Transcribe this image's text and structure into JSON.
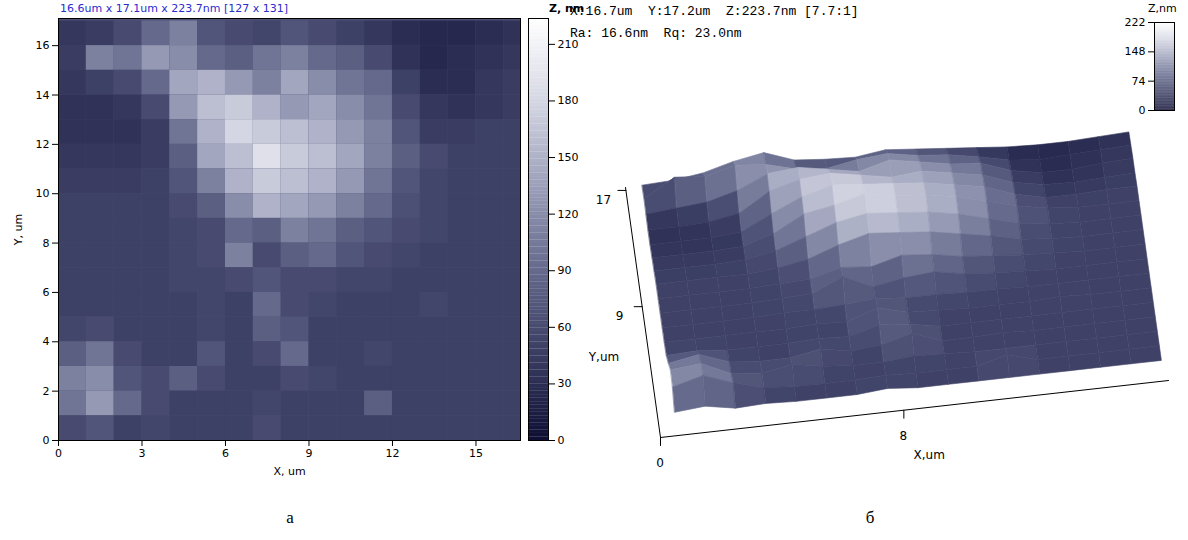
{
  "chart_data": [
    {
      "type": "heatmap",
      "title": "16.6um x 17.1um x 223.7nm [127 x 131]",
      "x_label": "X, um",
      "y_label": "Y, um",
      "xlim": [
        0,
        16.6
      ],
      "ylim": [
        0,
        17.1
      ],
      "xticks": [
        0,
        3,
        6,
        9,
        12,
        15
      ],
      "yticks": [
        0,
        2,
        4,
        6,
        8,
        10,
        12,
        14,
        16
      ],
      "x": [
        0.5,
        1.5,
        2.5,
        3.5,
        4.5,
        5.5,
        6.5,
        7.5,
        8.5,
        9.5,
        10.5,
        11.5,
        12.5,
        13.5,
        14.5,
        15.5,
        16.5
      ],
      "y": [
        16.5,
        15.5,
        14.5,
        13.5,
        12.5,
        11.5,
        10.5,
        9.5,
        8.5,
        7.5,
        6.5,
        5.5,
        4.5,
        3.5,
        2.5,
        1.5,
        0.5
      ],
      "z": [
        [
          40,
          45,
          60,
          90,
          110,
          70,
          60,
          55,
          70,
          60,
          50,
          40,
          30,
          25,
          25,
          30,
          35
        ],
        [
          45,
          110,
          100,
          130,
          120,
          90,
          80,
          100,
          110,
          90,
          80,
          60,
          35,
          25,
          30,
          35,
          40
        ],
        [
          40,
          50,
          60,
          90,
          140,
          150,
          130,
          110,
          140,
          120,
          100,
          90,
          50,
          30,
          30,
          40,
          45
        ],
        [
          35,
          35,
          40,
          60,
          130,
          160,
          170,
          150,
          130,
          140,
          120,
          100,
          60,
          40,
          35,
          40,
          45
        ],
        [
          35,
          35,
          35,
          45,
          100,
          150,
          180,
          170,
          160,
          150,
          130,
          110,
          70,
          45,
          45,
          50,
          50
        ],
        [
          40,
          40,
          40,
          45,
          80,
          140,
          160,
          190,
          170,
          160,
          140,
          110,
          80,
          60,
          50,
          50,
          50
        ],
        [
          45,
          45,
          45,
          50,
          70,
          110,
          150,
          170,
          160,
          150,
          130,
          100,
          70,
          55,
          50,
          50,
          50
        ],
        [
          50,
          50,
          50,
          50,
          60,
          80,
          120,
          150,
          140,
          130,
          110,
          90,
          65,
          55,
          50,
          50,
          50
        ],
        [
          50,
          50,
          50,
          50,
          55,
          60,
          90,
          80,
          110,
          100,
          80,
          70,
          60,
          55,
          50,
          50,
          50
        ],
        [
          50,
          50,
          50,
          50,
          55,
          60,
          110,
          60,
          80,
          90,
          70,
          60,
          55,
          50,
          50,
          50,
          50
        ],
        [
          50,
          50,
          50,
          50,
          55,
          55,
          60,
          70,
          60,
          60,
          55,
          55,
          50,
          50,
          50,
          50,
          50
        ],
        [
          50,
          50,
          50,
          50,
          50,
          55,
          50,
          90,
          60,
          55,
          50,
          50,
          50,
          55,
          50,
          50,
          50
        ],
        [
          55,
          60,
          50,
          50,
          50,
          55,
          50,
          80,
          70,
          50,
          50,
          50,
          50,
          50,
          50,
          50,
          50
        ],
        [
          80,
          100,
          60,
          50,
          50,
          70,
          50,
          60,
          90,
          50,
          50,
          55,
          50,
          50,
          50,
          50,
          50
        ],
        [
          110,
          120,
          70,
          60,
          80,
          60,
          50,
          50,
          60,
          55,
          50,
          50,
          50,
          50,
          50,
          50,
          50
        ],
        [
          100,
          130,
          90,
          60,
          50,
          50,
          50,
          55,
          50,
          50,
          50,
          80,
          50,
          50,
          50,
          50,
          50
        ],
        [
          60,
          70,
          50,
          55,
          50,
          50,
          50,
          60,
          50,
          50,
          50,
          50,
          50,
          50,
          50,
          50,
          50
        ]
      ],
      "colorbar": {
        "label": "Z, nm",
        "range": [
          0,
          223.7
        ],
        "ticks": [
          0,
          30,
          60,
          90,
          120,
          150,
          180,
          210
        ]
      },
      "caption": "а"
    },
    {
      "type": "surface",
      "title": "X:16.7um  Y:17.2um  Z:223.7nm [7.7:1]",
      "subtitle": "Ra: 16.6nm  Rq: 23.0nm",
      "x_label": "X,um",
      "y_label": "Y,um",
      "xlim": [
        0,
        16.7
      ],
      "ylim": [
        0,
        17.2
      ],
      "xticks": [
        0,
        8
      ],
      "yticks": [
        9,
        17
      ],
      "x": [
        0.5,
        1.5,
        2.5,
        3.5,
        4.5,
        5.5,
        6.5,
        7.5,
        8.5,
        9.5,
        10.5,
        11.5,
        12.5,
        13.5,
        14.5,
        15.5,
        16.5
      ],
      "y": [
        16.5,
        15.5,
        14.5,
        13.5,
        12.5,
        11.5,
        10.5,
        9.5,
        8.5,
        7.5,
        6.5,
        5.5,
        4.5,
        3.5,
        2.5,
        1.5,
        0.5
      ],
      "z": [
        [
          40,
          45,
          60,
          90,
          110,
          70,
          60,
          55,
          70,
          60,
          50,
          40,
          30,
          25,
          25,
          30,
          35
        ],
        [
          45,
          110,
          100,
          130,
          120,
          90,
          80,
          100,
          110,
          90,
          80,
          60,
          35,
          25,
          30,
          35,
          40
        ],
        [
          40,
          50,
          60,
          90,
          140,
          150,
          130,
          110,
          140,
          120,
          100,
          90,
          50,
          30,
          30,
          40,
          45
        ],
        [
          35,
          35,
          40,
          60,
          130,
          160,
          170,
          150,
          130,
          140,
          120,
          100,
          60,
          40,
          35,
          40,
          45
        ],
        [
          35,
          35,
          35,
          45,
          100,
          150,
          180,
          170,
          160,
          150,
          130,
          110,
          70,
          45,
          45,
          50,
          50
        ],
        [
          40,
          40,
          40,
          45,
          80,
          140,
          160,
          190,
          170,
          160,
          140,
          110,
          80,
          60,
          50,
          50,
          50
        ],
        [
          45,
          45,
          45,
          50,
          70,
          110,
          150,
          170,
          160,
          150,
          130,
          100,
          70,
          55,
          50,
          50,
          50
        ],
        [
          50,
          50,
          50,
          50,
          60,
          80,
          120,
          150,
          140,
          130,
          110,
          90,
          65,
          55,
          50,
          50,
          50
        ],
        [
          50,
          50,
          50,
          50,
          55,
          60,
          90,
          80,
          110,
          100,
          80,
          70,
          60,
          55,
          50,
          50,
          50
        ],
        [
          50,
          50,
          50,
          50,
          55,
          60,
          110,
          60,
          80,
          90,
          70,
          60,
          55,
          50,
          50,
          50,
          50
        ],
        [
          50,
          50,
          50,
          50,
          55,
          55,
          60,
          70,
          60,
          60,
          55,
          55,
          50,
          50,
          50,
          50,
          50
        ],
        [
          50,
          50,
          50,
          50,
          50,
          55,
          50,
          90,
          60,
          55,
          50,
          50,
          50,
          55,
          50,
          50,
          50
        ],
        [
          55,
          60,
          50,
          50,
          50,
          55,
          50,
          80,
          70,
          50,
          50,
          50,
          50,
          50,
          50,
          50,
          50
        ],
        [
          80,
          100,
          60,
          50,
          50,
          70,
          50,
          60,
          90,
          50,
          50,
          55,
          50,
          50,
          50,
          50,
          50
        ],
        [
          110,
          120,
          70,
          60,
          80,
          60,
          50,
          50,
          60,
          55,
          50,
          50,
          50,
          50,
          50,
          50,
          50
        ],
        [
          100,
          130,
          90,
          60,
          50,
          50,
          50,
          55,
          50,
          50,
          50,
          80,
          50,
          50,
          50,
          50,
          50
        ],
        [
          60,
          70,
          50,
          55,
          50,
          50,
          50,
          60,
          50,
          50,
          50,
          50,
          50,
          50,
          50,
          50,
          50
        ]
      ],
      "colorbar": {
        "label": "Z,nm",
        "range": [
          0,
          222
        ],
        "ticks": [
          0,
          74,
          148,
          222
        ]
      },
      "caption": "б"
    }
  ]
}
